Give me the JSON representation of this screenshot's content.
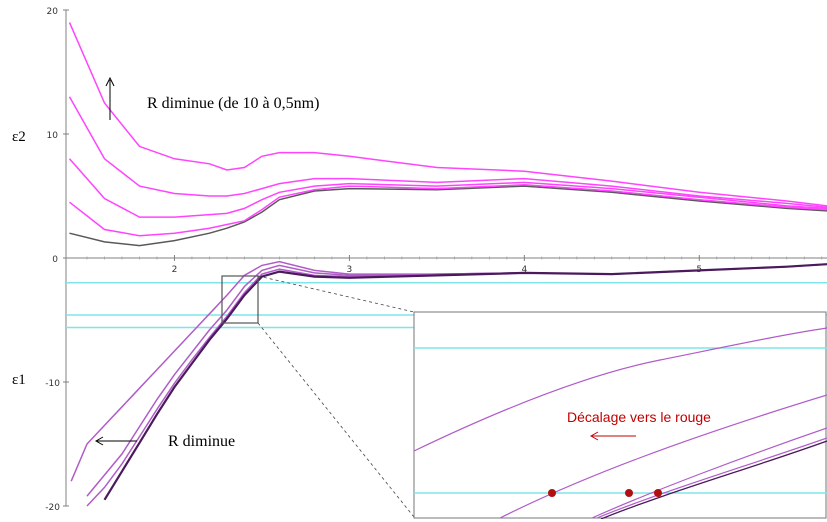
{
  "chart_data": [
    {
      "type": "line",
      "panel": "top",
      "ylabel": "ε2",
      "ylim": [
        0,
        20
      ],
      "y_ticks": [
        "20",
        "10",
        "0"
      ],
      "annotations": [
        {
          "text": "R diminue (de 10 à 0,5nm)",
          "arrow": "up"
        }
      ],
      "x": [
        1.4,
        1.6,
        1.8,
        2.0,
        2.2,
        2.3,
        2.4,
        2.5,
        2.6,
        2.8,
        3.0,
        3.5,
        4.0,
        4.5,
        5.0,
        5.5,
        5.73
      ],
      "series": [
        {
          "color": "#595959",
          "values": [
            2.0,
            1.3,
            1.0,
            1.4,
            2.0,
            2.4,
            2.9,
            3.7,
            4.7,
            5.4,
            5.6,
            5.5,
            5.8,
            5.3,
            4.6,
            4.0,
            3.8
          ]
        },
        {
          "color": "#ff44ff",
          "values": [
            4.5,
            2.3,
            1.8,
            2.0,
            2.4,
            2.7,
            3.0,
            3.9,
            4.9,
            5.5,
            5.8,
            5.6,
            5.9,
            5.4,
            4.7,
            4.1,
            3.9
          ]
        },
        {
          "color": "#ff44ff",
          "values": [
            8.0,
            4.8,
            3.3,
            3.3,
            3.5,
            3.6,
            4.0,
            4.7,
            5.3,
            5.8,
            6.0,
            5.8,
            6.1,
            5.6,
            4.9,
            4.2,
            4.0
          ]
        },
        {
          "color": "#ff44ff",
          "values": [
            13.0,
            8.0,
            5.8,
            5.2,
            5.0,
            5.0,
            5.2,
            5.6,
            6.0,
            6.4,
            6.4,
            6.1,
            6.4,
            5.8,
            5.0,
            4.4,
            4.1
          ]
        },
        {
          "color": "#ff44ff",
          "values": [
            19.0,
            12.5,
            9.0,
            8.0,
            7.6,
            7.1,
            7.3,
            8.2,
            8.5,
            8.5,
            8.2,
            7.3,
            7.0,
            6.2,
            5.3,
            4.6,
            4.2
          ]
        }
      ]
    },
    {
      "type": "line",
      "panel": "bottom",
      "ylabel": "ε1",
      "ylim": [
        -20,
        0
      ],
      "y_ticks": [
        "-10",
        "-20"
      ],
      "x_ticks": [
        "2",
        "3",
        "4",
        "5"
      ],
      "xlim": [
        1.38,
        5.73
      ],
      "annotations": [
        {
          "text": "R diminue",
          "arrow": "left"
        }
      ],
      "reference_lines_y": [
        -2.0,
        -4.6,
        -5.6
      ],
      "x": [
        1.41,
        1.5,
        1.6,
        1.7,
        1.8,
        1.9,
        2.0,
        2.1,
        2.2,
        2.3,
        2.4,
        2.5,
        2.6,
        2.8,
        3.0,
        3.5,
        4.0,
        4.5,
        5.0,
        5.5,
        5.73
      ],
      "series": [
        {
          "color": "#b05cc8",
          "values": [
            -18.0,
            -15.0,
            -13.5,
            -12.0,
            -10.5,
            -9.0,
            -7.5,
            -6.0,
            -4.5,
            -3.0,
            -1.4,
            -0.6,
            -0.3,
            -1.0,
            -1.3,
            -1.3,
            -1.2,
            -1.3,
            -1.0,
            -0.7,
            -0.5
          ]
        },
        {
          "color": "#b05cc8",
          "values": [
            null,
            -19.2,
            -17.5,
            -15.8,
            -13.6,
            -11.4,
            -9.4,
            -7.6,
            -5.8,
            -4.2,
            -2.3,
            -1.0,
            -0.6,
            -1.2,
            -1.4,
            -1.3,
            -1.2,
            -1.3,
            -1.0,
            -0.7,
            -0.5
          ]
        },
        {
          "color": "#b05cc8",
          "values": [
            null,
            -20.0,
            -18.5,
            -16.6,
            -14.4,
            -12.2,
            -10.1,
            -8.2,
            -6.4,
            -4.7,
            -2.8,
            -1.3,
            -0.9,
            -1.4,
            -1.5,
            -1.3,
            -1.2,
            -1.3,
            -1.0,
            -0.7,
            -0.5
          ]
        },
        {
          "color": "#4a1a5c",
          "values": [
            null,
            null,
            -19.5,
            -17.2,
            -14.9,
            -12.6,
            -10.4,
            -8.5,
            -6.6,
            -4.9,
            -3.0,
            -1.5,
            -1.1,
            -1.5,
            -1.6,
            -1.4,
            -1.2,
            -1.3,
            -1.0,
            -0.7,
            -0.5
          ]
        }
      ],
      "zoom_inset": {
        "annotation": "Décalage vers le rouge",
        "arrow": "left",
        "markers": 3
      }
    }
  ]
}
